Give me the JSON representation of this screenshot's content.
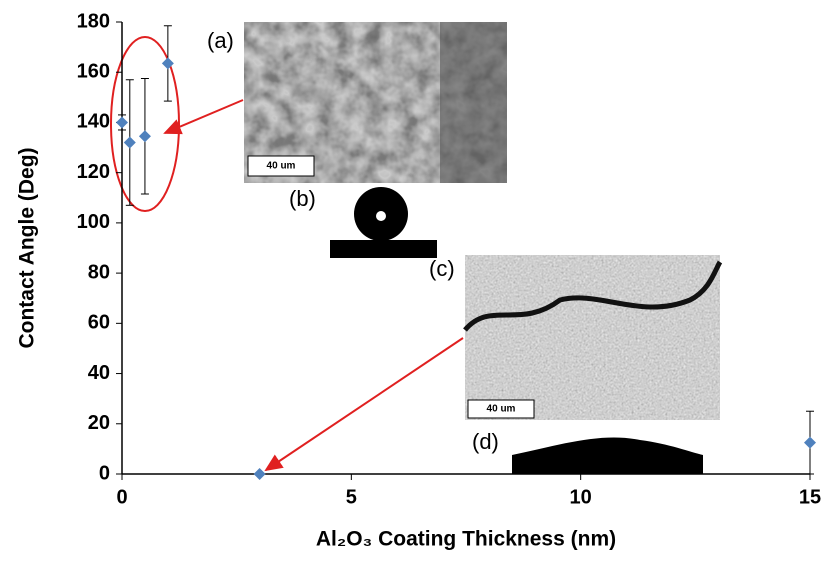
{
  "chart_data": {
    "type": "scatter",
    "x_label": "Al₂O₃ Coating Thickness (nm)",
    "y_label": "Contact Angle (Deg)",
    "xlim": [
      0,
      15
    ],
    "xticks": [
      0,
      5,
      10,
      15
    ],
    "ylim": [
      0,
      180
    ],
    "yticks": [
      0,
      20,
      40,
      60,
      80,
      100,
      120,
      140,
      160,
      180
    ],
    "series": [
      {
        "color": "#4f81bd",
        "x": [
          0,
          0.17,
          0.5,
          1,
          3,
          15
        ],
        "values": [
          140,
          132,
          134.5,
          163.5,
          0,
          12.5
        ],
        "errors": [
          3,
          25,
          23,
          15,
          0,
          12.5
        ]
      }
    ],
    "annotations": [
      "(a)",
      "(b)",
      "(c)",
      "(d)"
    ],
    "scale_bars": [
      "40 um",
      "40 um"
    ]
  }
}
